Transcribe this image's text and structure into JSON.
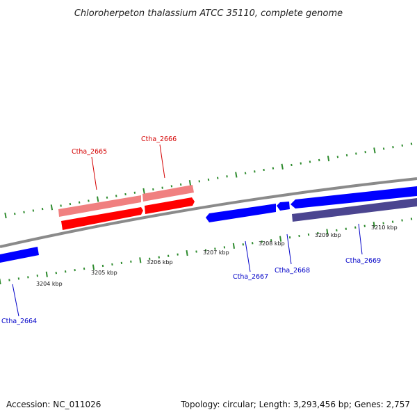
{
  "title": "Chloroherpeton thalassium ATCC 35110, complete genome",
  "footer": {
    "accession": "Accession: NC_011026",
    "summary": "Topology: circular; Length: 3,293,456 bp; Genes: 2,757"
  },
  "colors": {
    "backbone": "#8a8a8a",
    "tick": "#2e8b2e",
    "forward_gene": "#ff0000",
    "forward_gene_light": "#f08080",
    "reverse_gene": "#0000ff",
    "reverse_gene_dark": "#4b4590",
    "forward_label": "#d40000",
    "reverse_label": "#0000c8"
  },
  "scale": {
    "tick_labels": [
      "3204 kbp",
      "3205 kbp",
      "3206 kbp",
      "3207 kbp",
      "3208 kbp",
      "3209 kbp",
      "3210 kbp"
    ]
  },
  "genes": {
    "forward": [
      {
        "label": "Ctha_2665"
      },
      {
        "label": "Ctha_2666"
      }
    ],
    "reverse": [
      {
        "label": "Ctha_2664"
      },
      {
        "label": "Ctha_2667"
      },
      {
        "label": "Ctha_2668"
      },
      {
        "label": "Ctha_2669"
      }
    ]
  }
}
